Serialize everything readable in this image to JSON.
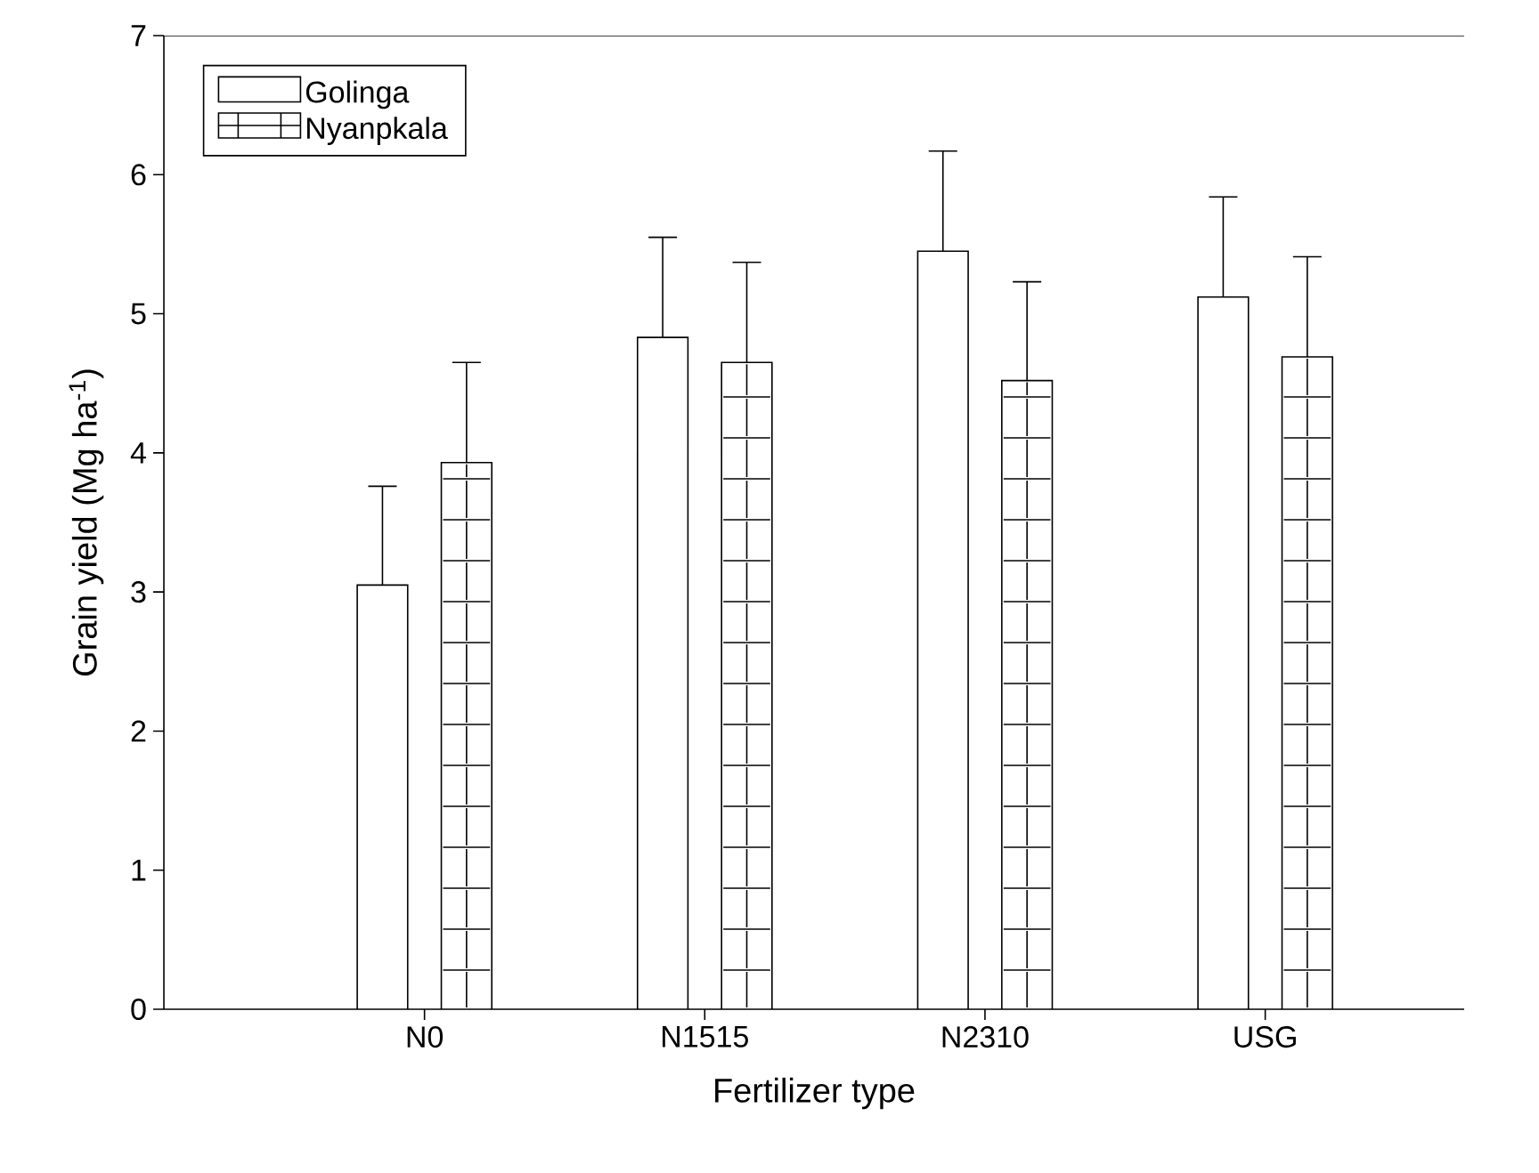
{
  "chart_data": {
    "type": "bar",
    "xlabel": "Fertilizer type",
    "ylabel": "Grain yield (Mg ha$^{-1}$)",
    "categories": [
      "N0",
      "N1515",
      "N2310",
      "USG"
    ],
    "series": [
      {
        "name": "Golinga",
        "color": "#ffffff",
        "values": [
          3.05,
          4.83,
          5.45,
          5.12
        ],
        "errors": [
          [
            3.05,
            3.76
          ],
          [
            4.83,
            5.55
          ],
          [
            5.45,
            6.17
          ],
          [
            5.12,
            5.84
          ]
        ]
      },
      {
        "name": "Nyanpkala",
        "color": "#ffffff",
        "values": [
          3.93,
          4.65,
          4.52,
          4.69
        ],
        "errors": [
          [
            3.93,
            4.65
          ],
          [
            4.65,
            5.37
          ],
          [
            4.52,
            5.23
          ],
          [
            4.69,
            5.41
          ]
        ]
      }
    ],
    "ylim": [
      0,
      7
    ],
    "yticks": [
      0,
      1,
      2,
      3,
      4,
      5,
      6,
      7
    ],
    "legend": "top left"
  }
}
